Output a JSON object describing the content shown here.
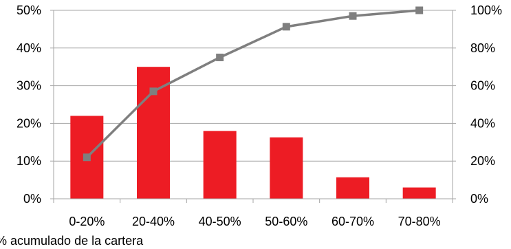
{
  "chart_data": {
    "type": "bar",
    "categories": [
      "0-20%",
      "20-40%",
      "40-50%",
      "50-60%",
      "60-70%",
      "70-80%"
    ],
    "series": [
      {
        "type": "bar",
        "axis": "left",
        "values": [
          0.22,
          0.35,
          0.18,
          0.163,
          0.057,
          0.03
        ]
      },
      {
        "type": "line",
        "axis": "right",
        "values": [
          0.22,
          0.57,
          0.75,
          0.913,
          0.97,
          1.0
        ]
      }
    ],
    "y_left": {
      "lim": [
        0,
        0.5
      ],
      "ticks": [
        0,
        0.1,
        0.2,
        0.3,
        0.4,
        0.5
      ],
      "tick_labels": [
        "0%",
        "10%",
        "20%",
        "30%",
        "40%",
        "50%"
      ]
    },
    "y_right": {
      "lim": [
        0,
        1.0
      ],
      "ticks": [
        0,
        0.2,
        0.4,
        0.6,
        0.8,
        1.0
      ],
      "tick_labels": [
        "0%",
        "20%",
        "40%",
        "60%",
        "80%",
        "100%"
      ]
    },
    "footnote": "% acumulado de la cartera",
    "grid": true,
    "colors": {
      "bar": "#ed1c24",
      "line": "#7f7f7f",
      "grid": "#a6a6a6",
      "axis": "#a6a6a6"
    }
  }
}
